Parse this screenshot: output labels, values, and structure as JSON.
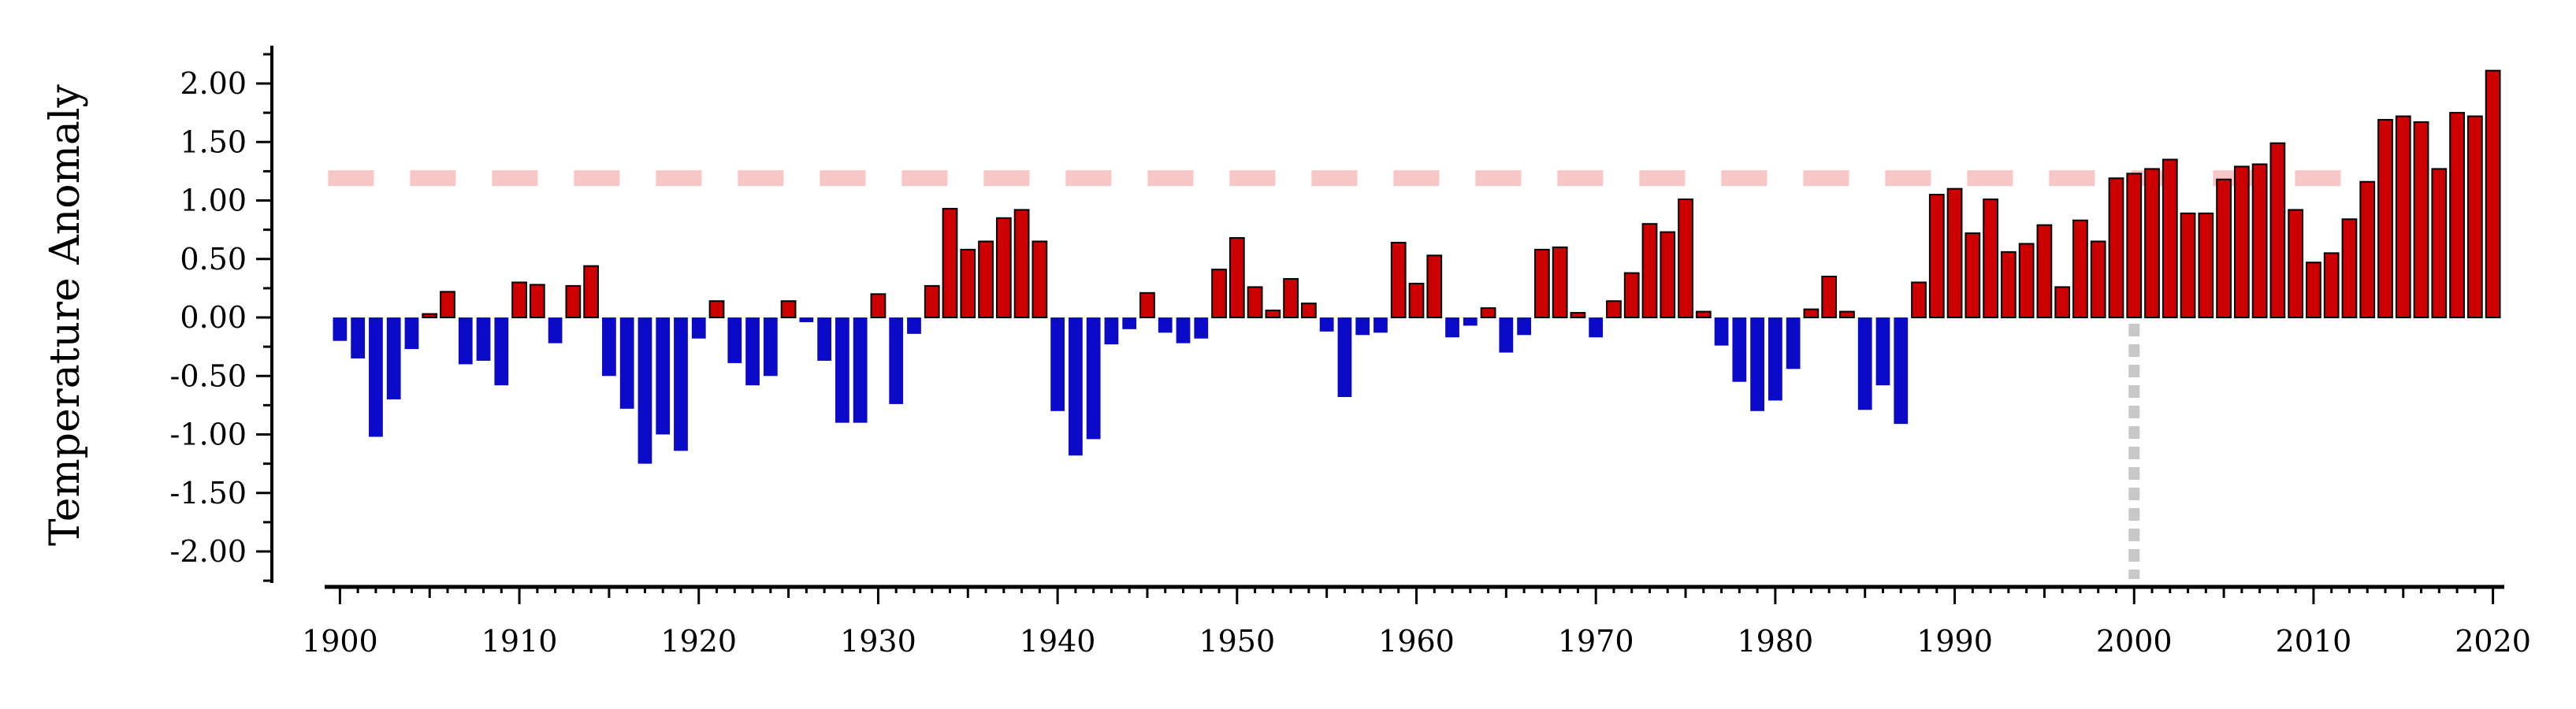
{
  "chart_data": {
    "type": "bar",
    "ylabel": "Temperature Anomaly",
    "xlabel": "",
    "xlim": [
      1899.5,
      2020.5
    ],
    "ylim": [
      -2.3,
      2.3
    ],
    "yticks": [
      "2.00",
      "1.50",
      "1.00",
      "0.50",
      "0.00",
      "-0.50",
      "-1.00",
      "-1.50",
      "-2.00"
    ],
    "ytick_values": [
      2.0,
      1.5,
      1.0,
      0.5,
      0.0,
      -0.5,
      -1.0,
      -1.5,
      -2.0
    ],
    "xticks": [
      "1900",
      "1910",
      "1920",
      "1930",
      "1940",
      "1950",
      "1960",
      "1970",
      "1980",
      "1990",
      "2000",
      "2010",
      "2020"
    ],
    "xtick_values": [
      1900,
      1910,
      1920,
      1930,
      1940,
      1950,
      1960,
      1970,
      1980,
      1990,
      2000,
      2010,
      2020
    ],
    "years": [
      1900,
      1901,
      1902,
      1903,
      1904,
      1905,
      1906,
      1907,
      1908,
      1909,
      1910,
      1911,
      1912,
      1913,
      1914,
      1915,
      1916,
      1917,
      1918,
      1919,
      1920,
      1921,
      1922,
      1923,
      1924,
      1925,
      1926,
      1927,
      1928,
      1929,
      1930,
      1931,
      1932,
      1933,
      1934,
      1935,
      1936,
      1937,
      1938,
      1939,
      1940,
      1941,
      1942,
      1943,
      1944,
      1945,
      1946,
      1947,
      1948,
      1949,
      1950,
      1951,
      1952,
      1953,
      1954,
      1955,
      1956,
      1957,
      1958,
      1959,
      1960,
      1961,
      1962,
      1963,
      1964,
      1965,
      1966,
      1967,
      1968,
      1969,
      1970,
      1971,
      1972,
      1973,
      1974,
      1975,
      1976,
      1977,
      1978,
      1979,
      1980,
      1981,
      1982,
      1983,
      1984,
      1985,
      1986,
      1987,
      1988,
      1989,
      1990,
      1991,
      1992,
      1993,
      1994,
      1995,
      1996,
      1997,
      1998,
      1999,
      2000,
      2001,
      2002,
      2003,
      2004,
      2005,
      2006,
      2007,
      2008,
      2009,
      2010,
      2011,
      2012,
      2013,
      2014,
      2015,
      2016,
      2017,
      2018,
      2019,
      2020
    ],
    "values": [
      -0.2,
      -0.35,
      -1.02,
      -0.7,
      -0.27,
      0.03,
      0.22,
      -0.4,
      -0.37,
      -0.58,
      0.3,
      0.28,
      -0.22,
      0.27,
      0.44,
      -0.5,
      -0.78,
      -1.25,
      -1.0,
      -1.14,
      -0.18,
      0.14,
      -0.39,
      -0.58,
      -0.5,
      0.14,
      -0.04,
      -0.37,
      -0.9,
      -0.9,
      0.2,
      -0.74,
      -0.14,
      0.27,
      0.93,
      0.58,
      0.65,
      0.85,
      0.92,
      0.65,
      -0.8,
      -1.18,
      -1.04,
      -0.23,
      -0.1,
      0.21,
      -0.13,
      -0.22,
      -0.18,
      0.41,
      0.68,
      0.26,
      0.06,
      0.33,
      0.12,
      -0.12,
      -0.68,
      -0.15,
      -0.13,
      0.64,
      0.29,
      0.53,
      -0.17,
      -0.07,
      0.08,
      -0.3,
      -0.15,
      0.58,
      0.6,
      0.04,
      -0.17,
      0.14,
      0.38,
      0.8,
      0.73,
      1.01,
      0.05,
      -0.24,
      -0.55,
      -0.8,
      -0.71,
      -0.44,
      0.07,
      0.35,
      0.05,
      -0.79,
      -0.58,
      -0.91,
      0.3,
      1.05,
      1.1,
      0.72,
      1.01,
      0.56,
      0.63,
      0.79,
      0.26,
      0.83,
      0.65,
      1.19,
      1.23,
      1.27,
      1.35,
      0.89,
      0.89,
      1.18,
      1.29,
      1.31,
      1.49,
      0.92,
      0.47,
      0.55,
      0.84,
      1.16,
      1.69,
      1.72,
      1.67,
      1.27,
      1.75,
      1.72,
      2.11
    ],
    "threshold": 1.19,
    "vline": 2000,
    "colors": {
      "positive": "#cc0000",
      "negative": "#0a0ac8",
      "threshold_line": "#f7c6c6",
      "vline": "#c8c8c8",
      "axis": "#000000"
    },
    "grid": false,
    "legend": "none"
  }
}
